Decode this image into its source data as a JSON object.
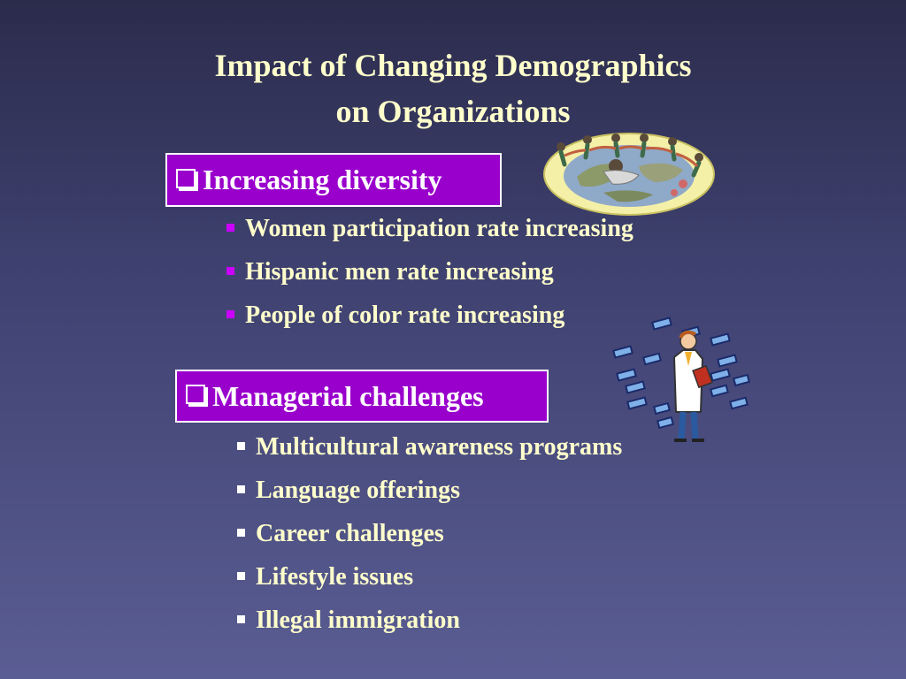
{
  "title": {
    "line1": "Impact of Changing Demographics",
    "line2": "on Organizations"
  },
  "sections": [
    {
      "heading": "Increasing diversity",
      "items": [
        "Women participation rate increasing",
        "Hispanic men rate increasing",
        "People of color rate increasing"
      ]
    },
    {
      "heading": "Managerial challenges",
      "items": [
        "Multicultural awareness programs",
        "Language offerings",
        "Career challenges",
        "Lifestyle issues",
        "Illegal immigration"
      ]
    }
  ],
  "colors": {
    "background_top": "#2b2c4c",
    "background_bottom": "#5a5d93",
    "title_text": "#ffffcc",
    "box_fill": "#9900cc",
    "bullet_purple": "#cc00ff"
  },
  "illustrations": [
    "globe-people-clipart",
    "scientist-clipart"
  ]
}
